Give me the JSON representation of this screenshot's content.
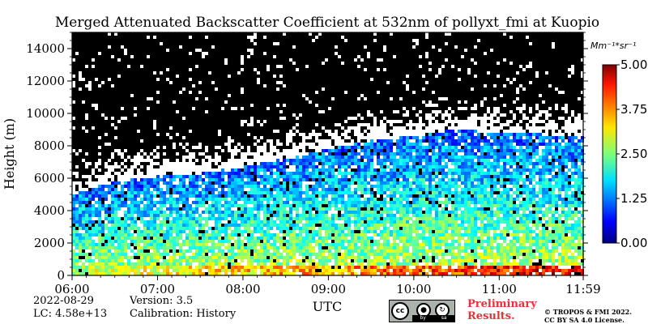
{
  "chart_data": {
    "type": "heatmap",
    "title": "Merged Attenuated Backscatter Coefficient at 532nm of pollyxt_fmi at Kuopio",
    "xlabel": "UTC",
    "ylabel": "Height (m)",
    "x_ticks": [
      "06:00",
      "07:00",
      "08:00",
      "09:00",
      "10:00",
      "11:00",
      "11:59"
    ],
    "x_range_hours": [
      6.0,
      11.983
    ],
    "y_ticks": [
      0,
      2000,
      4000,
      6000,
      8000,
      10000,
      12000,
      14000
    ],
    "ylim": [
      0,
      15000
    ],
    "colorbar": {
      "unit": "Mm⁻¹*sr⁻¹",
      "ticks": [
        "0.00",
        "1.25",
        "2.50",
        "3.75",
        "5.00"
      ],
      "range": [
        0,
        5
      ],
      "colormap": "jet"
    },
    "cloud_top_profile": {
      "time_hours": [
        6.0,
        6.5,
        7.0,
        7.5,
        8.0,
        8.5,
        9.0,
        9.5,
        10.0,
        10.5,
        11.0,
        11.5,
        11.98
      ],
      "height_m": [
        5000,
        5800,
        6100,
        6300,
        6700,
        7200,
        7800,
        8300,
        8600,
        9000,
        8800,
        8700,
        8600
      ]
    }
  },
  "footer": {
    "date": "2022-08-29",
    "lc": "LC: 4.58e+13",
    "version": "Version: 3.5",
    "calibration": "Calibration: History",
    "preliminary_line1": "Preliminary",
    "preliminary_line2": "Results.",
    "copyright_line1": "© TROPOS & FMI 2022.",
    "copyright_line2": "CC BY SA 4.0 License.",
    "license_icons": [
      "cc",
      "by",
      "sa"
    ]
  }
}
